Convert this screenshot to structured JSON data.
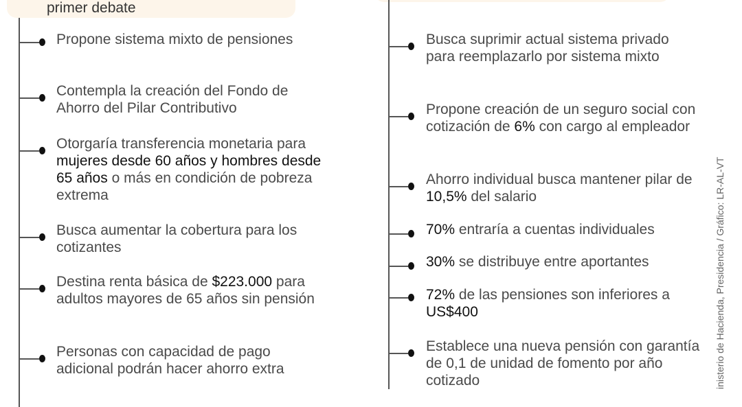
{
  "left": {
    "header": "primer debate",
    "items": [
      {
        "parts": [
          {
            "t": "Propone sistema mixto de pensiones"
          }
        ]
      },
      {
        "parts": [
          {
            "t": "Contempla la creación del Fondo de Ahorro del Pilar Contributivo"
          }
        ]
      },
      {
        "parts": [
          {
            "t": "Otorgaría transferencia monetaria para "
          },
          {
            "t": "mujeres desde 60 años  y hombres desde 65 años",
            "b": true
          },
          {
            "t": " o más en condición de pobreza extrema"
          }
        ]
      },
      {
        "parts": [
          {
            "t": "Busca aumentar la cobertura para los cotizantes"
          }
        ]
      },
      {
        "parts": [
          {
            "t": "Destina renta básica de "
          },
          {
            "t": "$223.000",
            "b": true
          },
          {
            "t": " para adultos mayores de 65 años sin pensión"
          }
        ]
      },
      {
        "parts": [
          {
            "t": "Personas con capacidad de pago adicional podrán hacer ahorro extra"
          }
        ]
      }
    ]
  },
  "right": {
    "items": [
      {
        "parts": [
          {
            "t": "Busca suprimir actual sistema privado para reemplazarlo por sistema mixto"
          }
        ]
      },
      {
        "parts": [
          {
            "t": "Propone creación de un seguro social con cotización de "
          },
          {
            "t": "6%",
            "b": true
          },
          {
            "t": " con cargo al empleador"
          }
        ]
      },
      {
        "parts": [
          {
            "t": "Ahorro individual busca mantener pilar de "
          },
          {
            "t": "10,5%",
            "b": true
          },
          {
            "t": " del salario"
          }
        ]
      },
      {
        "parts": [
          {
            "t": "70%",
            "b": true
          },
          {
            "t": " entraría a cuentas individuales"
          }
        ]
      },
      {
        "parts": [
          {
            "t": "30%",
            "b": true
          },
          {
            "t": " se distribuye entre aportantes"
          }
        ]
      },
      {
        "parts": [
          {
            "t": "72%",
            "b": true
          },
          {
            "t": " de las pensiones son inferiores a "
          },
          {
            "t": "US$400",
            "b": true
          }
        ]
      },
      {
        "parts": [
          {
            "t": "Establece una nueva pensión con garantía de 0,1 de unidad de fomento por año cotizado"
          }
        ]
      }
    ]
  },
  "source": "inisterio de Hacienda, Presidencia / Gráfico: LR-AL-VT",
  "colors": {
    "box": "#fdf5ea",
    "text": "#4a4a4a",
    "bold": "#111111"
  }
}
